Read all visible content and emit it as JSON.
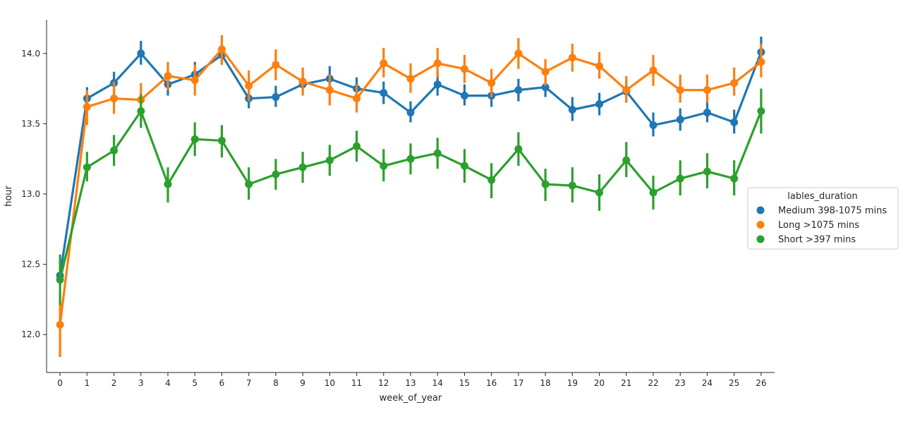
{
  "chart_data": {
    "type": "line",
    "title": "",
    "xlabel": "week_of_year",
    "ylabel": "hour",
    "x": [
      0,
      1,
      2,
      3,
      4,
      5,
      6,
      7,
      8,
      9,
      10,
      11,
      12,
      13,
      14,
      15,
      16,
      17,
      18,
      19,
      20,
      21,
      22,
      23,
      24,
      25,
      26
    ],
    "ylim": [
      11.73,
      14.24
    ],
    "yticks": [
      12.0,
      12.5,
      13.0,
      13.5,
      14.0
    ],
    "ytick_labels": [
      "12.0",
      "12.5",
      "13.0",
      "13.5",
      "14.0"
    ],
    "grid": false,
    "legend": {
      "title": "lables_duration",
      "placement": "center-right-outside"
    },
    "series": [
      {
        "name": "Medium 398-1075 mins",
        "color": "#1f77b4",
        "values": [
          12.42,
          13.68,
          13.79,
          14.0,
          13.78,
          13.85,
          13.99,
          13.68,
          13.69,
          13.78,
          13.82,
          13.75,
          13.72,
          13.58,
          13.78,
          13.7,
          13.7,
          13.74,
          13.76,
          13.6,
          13.64,
          13.73,
          13.49,
          13.53,
          13.58,
          13.51,
          14.01
        ],
        "ci_low": [
          12.35,
          13.6,
          13.71,
          13.92,
          13.7,
          13.77,
          13.92,
          13.61,
          13.62,
          13.71,
          13.74,
          13.67,
          13.64,
          13.51,
          13.7,
          13.63,
          13.62,
          13.66,
          13.69,
          13.52,
          13.56,
          13.65,
          13.41,
          13.45,
          13.51,
          13.43,
          13.9
        ],
        "ci_high": [
          12.5,
          13.76,
          13.87,
          14.09,
          13.86,
          13.94,
          14.07,
          13.76,
          13.77,
          13.86,
          13.91,
          13.83,
          13.8,
          13.66,
          13.87,
          13.78,
          13.79,
          13.82,
          13.84,
          13.69,
          13.72,
          13.81,
          13.58,
          13.61,
          13.66,
          13.6,
          14.12
        ]
      },
      {
        "name": "Long >1075 mins",
        "color": "#ff7f0e",
        "values": [
          12.07,
          13.62,
          13.68,
          13.67,
          13.84,
          13.81,
          14.03,
          13.77,
          13.92,
          13.8,
          13.74,
          13.68,
          13.93,
          13.82,
          13.93,
          13.89,
          13.79,
          14.0,
          13.87,
          13.97,
          13.91,
          13.74,
          13.88,
          13.74,
          13.74,
          13.79,
          13.94
        ],
        "ci_low": [
          11.84,
          13.49,
          13.57,
          13.56,
          13.74,
          13.7,
          13.92,
          13.66,
          13.81,
          13.7,
          13.63,
          13.58,
          13.83,
          13.72,
          13.83,
          13.79,
          13.69,
          13.89,
          13.77,
          13.87,
          13.82,
          13.65,
          13.77,
          13.65,
          13.65,
          13.7,
          13.83
        ],
        "ci_high": [
          12.28,
          13.74,
          13.8,
          13.79,
          13.94,
          13.92,
          14.13,
          13.88,
          14.03,
          13.9,
          13.85,
          13.78,
          14.04,
          13.93,
          14.04,
          13.99,
          13.89,
          14.11,
          13.96,
          14.07,
          14.01,
          13.84,
          13.99,
          13.85,
          13.85,
          13.9,
          14.07
        ]
      },
      {
        "name": "Short >397 mins",
        "color": "#2ca02c",
        "values": [
          12.39,
          13.19,
          13.31,
          13.59,
          13.07,
          13.39,
          13.38,
          13.07,
          13.14,
          13.19,
          13.24,
          13.34,
          13.2,
          13.25,
          13.29,
          13.2,
          13.1,
          13.32,
          13.07,
          13.06,
          13.01,
          13.24,
          13.01,
          13.11,
          13.16,
          13.11,
          13.59
        ],
        "ci_low": [
          12.21,
          13.09,
          13.2,
          13.47,
          12.94,
          13.27,
          13.26,
          12.96,
          13.03,
          13.08,
          13.13,
          13.23,
          13.09,
          13.14,
          13.18,
          13.08,
          12.97,
          13.2,
          12.95,
          12.94,
          12.88,
          13.12,
          12.89,
          12.99,
          13.04,
          12.99,
          13.43
        ],
        "ci_high": [
          12.57,
          13.3,
          13.42,
          13.71,
          13.19,
          13.51,
          13.49,
          13.19,
          13.25,
          13.3,
          13.35,
          13.45,
          13.32,
          13.36,
          13.4,
          13.32,
          13.22,
          13.44,
          13.18,
          13.19,
          13.14,
          13.37,
          13.13,
          13.24,
          13.29,
          13.24,
          13.75
        ]
      }
    ]
  }
}
